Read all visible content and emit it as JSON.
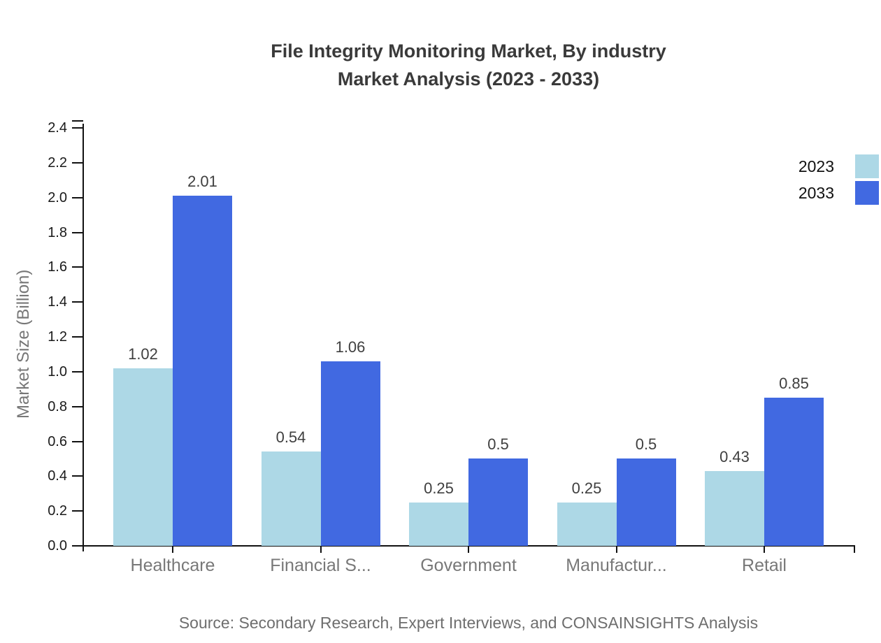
{
  "page": {
    "title_line1": "File Integrity Monitoring Market, By industry",
    "title_line2": "Market Analysis (2023 - 2033)",
    "source": "Source: Secondary Research, Expert Interviews, and CONSAINSIGHTS Analysis"
  },
  "colors": {
    "series_2023": "#ADD8E6",
    "series_2033": "#4169E1",
    "title_text": "#3A3A3A",
    "axis_line": "#111111",
    "ytick_label": "#1A1A1A",
    "category_label": "#787878",
    "value_label": "#3F3F3F",
    "source_text": "#6E6E6E",
    "background": "#FFFFFF"
  },
  "chart_data": {
    "type": "bar",
    "title": "File Integrity Monitoring Market, By industry Market Analysis (2023 - 2033)",
    "xlabel": "",
    "ylabel": "Market Size (Billion)",
    "categories": [
      "Healthcare",
      "Financial S...",
      "Government",
      "Manufactur...",
      "Retail"
    ],
    "series": [
      {
        "name": "2023",
        "color": "#ADD8E6",
        "values": [
          1.02,
          0.54,
          0.25,
          0.25,
          0.43
        ]
      },
      {
        "name": "2033",
        "color": "#4169E1",
        "values": [
          2.01,
          1.06,
          0.5,
          0.5,
          0.85
        ]
      }
    ],
    "value_labels": {
      "2023": [
        "1.02",
        "0.54",
        "0.25",
        "0.25",
        "0.43"
      ],
      "2033": [
        "2.01",
        "1.06",
        "0.5",
        "0.5",
        "0.85"
      ]
    },
    "ylim": [
      0,
      2.4
    ],
    "ytick_step": 0.2,
    "ytick_labels": [
      "0.0",
      "0.2",
      "0.4",
      "0.6",
      "0.8",
      "1.0",
      "1.2",
      "1.4",
      "1.6",
      "1.8",
      "2.0",
      "2.2",
      "2.4"
    ],
    "grid": false,
    "legend_position": "top-right"
  }
}
